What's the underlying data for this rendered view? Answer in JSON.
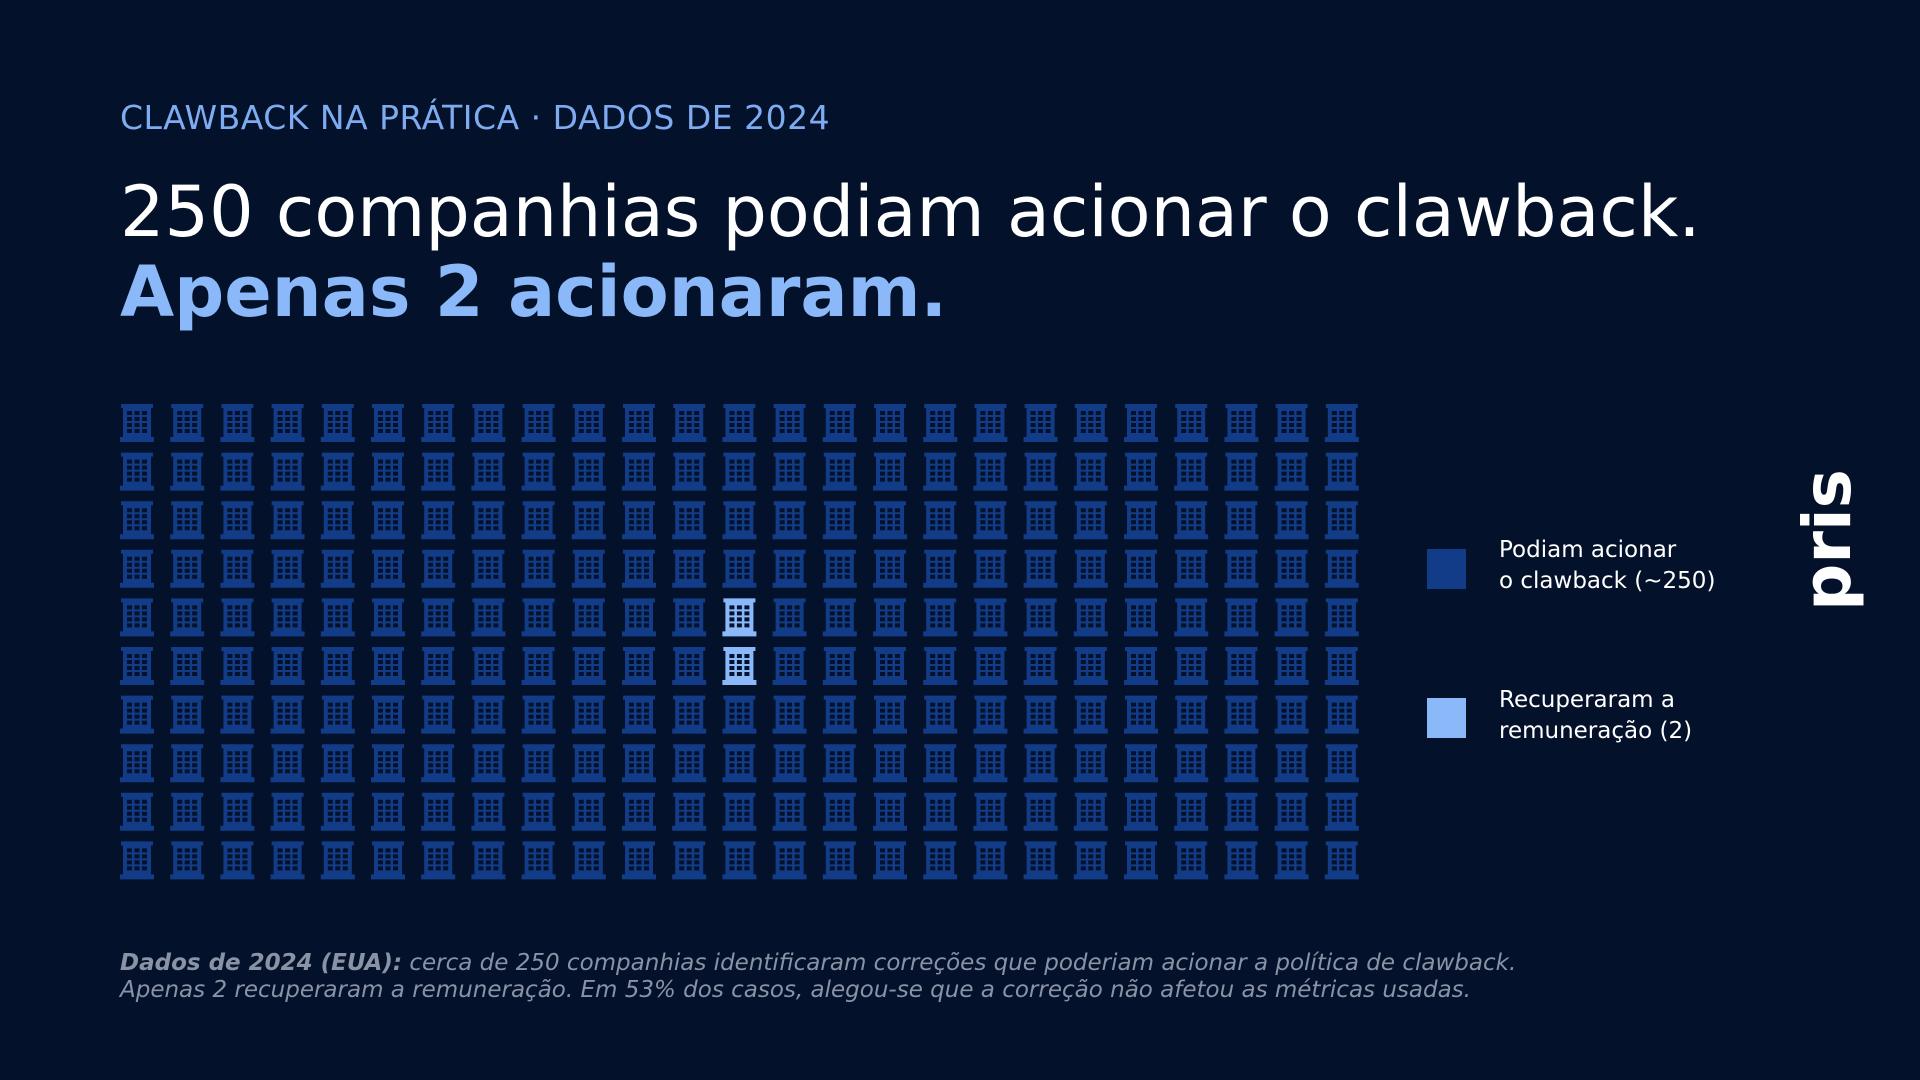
{
  "chart_data": {
    "type": "waffle",
    "kicker": "CLAWBACK NA PRÁTICA · DADOS DE 2024",
    "title": "250 companhias podiam acionar o clawback.",
    "subtitle": "Apenas 2 acionaram.",
    "series": [
      {
        "name": "Podiam acionar\no clawback (~250)",
        "color": "#133c88",
        "values": [
          250
        ]
      },
      {
        "name": "Recuperaram a\nremuneração (2)",
        "color": "#8ab8f8",
        "values": [
          2
        ]
      }
    ]
  },
  "footnote": {
    "lead": "Dados de 2024 (EUA):",
    "line1": "cerca de 250 companhias identificaram correções que poderiam acionar a política de clawback.",
    "line2": "Apenas 2 recuperaram a remuneração. Em 53% dos casos, alegou-se que a correção não afetou as métricas usadas."
  },
  "brand": "pris"
}
